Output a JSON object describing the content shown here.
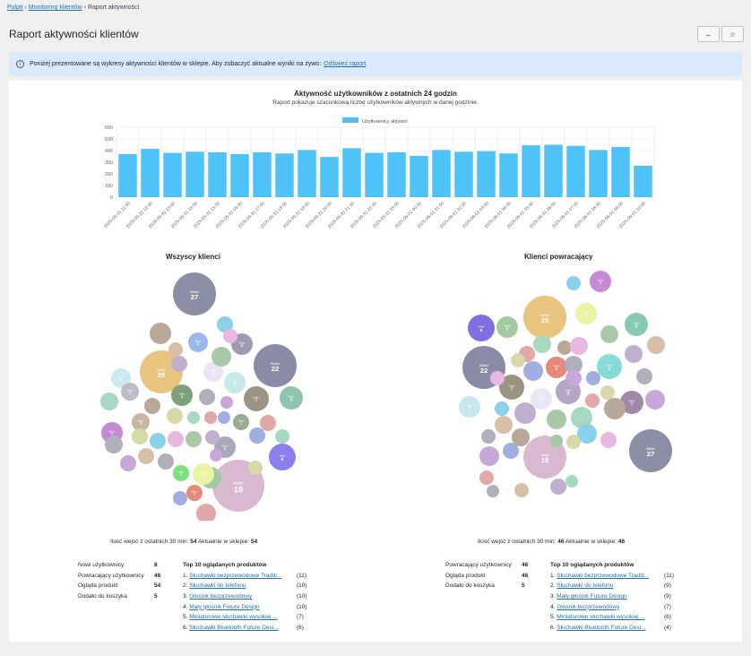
{
  "breadcrumb": {
    "items": [
      "Pulpit",
      "Monitoring klientów",
      "Raport aktywności"
    ],
    "separator": "›"
  },
  "page": {
    "title": "Raport aktywności klientów",
    "btn_collapse": "↔",
    "btn_star": "☆"
  },
  "notice": {
    "text": "Poniżej prezentowane są wykresy aktywności klientów w sklepie. Aby zobaczyć aktualne wyniki na żywo:",
    "link": "Odśwież raport",
    "icon": "i"
  },
  "chart_data": [
    {
      "type": "bar",
      "title": "Aktywność użytkowników z ostatnich 24 godzin",
      "subtitle": "Raport pokazuje szacunkową liczbę użytkowników aktywnych w danej godzinie.",
      "legend": "top",
      "grid": true,
      "ylim": [
        0,
        600
      ],
      "yticks": [
        0,
        100,
        200,
        300,
        400,
        500,
        600
      ],
      "categories": [
        "2025-05-31 11:00",
        "2025-05-31 12:00",
        "2025-05-31 13:00",
        "2025-05-31 14:00",
        "2025-05-31 15:00",
        "2025-05-31 16:00",
        "2025-05-31 17:00",
        "2025-05-31 18:00",
        "2025-05-31 19:00",
        "2025-05-31 20:00",
        "2025-05-31 21:00",
        "2025-05-31 22:00",
        "2025-05-31 23:00",
        "2025-06-01 00:00",
        "2025-06-01 01:00",
        "2025-06-01 02:00",
        "2025-06-01 03:00",
        "2025-06-01 04:00",
        "2025-06-01 05:00",
        "2025-06-01 06:00",
        "2025-06-01 07:00",
        "2025-06-01 08:00",
        "2025-06-01 09:00",
        "2025-06-01 10:00"
      ],
      "series": [
        {
          "name": "Użytkownicy aktywni",
          "color": "#4fc3f7",
          "values": [
            370,
            415,
            380,
            390,
            385,
            370,
            385,
            375,
            405,
            345,
            420,
            380,
            385,
            355,
            405,
            390,
            395,
            375,
            445,
            450,
            440,
            405,
            430,
            270
          ]
        }
      ]
    }
  ],
  "bubbles": {
    "all": {
      "title": "Wszyscy klienci",
      "footnote_prefix": "Ilość wejść z ostatnich 30 min:",
      "footnote_count": "54",
      "footnote_mid": "Aktualnie w sklepie:",
      "footnote_current": "54",
      "items": [
        {
          "label": "Wejść",
          "value": "27",
          "color": "#8a8fa6"
        },
        {
          "label": "Wejść",
          "value": "25",
          "color": "#e8c47e"
        },
        {
          "label": "Wejść",
          "value": "22",
          "color": "#8b8ba8"
        },
        {
          "label": "Wejść",
          "value": "18",
          "color": "#d8b9cf"
        },
        {
          "label": "Wejść",
          "value": "9",
          "color": "#8b7ff0"
        },
        {
          "label": "Wejść",
          "value": "8",
          "color": "#a8a9b8"
        },
        {
          "label": "Wejść",
          "value": "7",
          "color": "#c48ad4"
        },
        {
          "label": "Wejść",
          "value": "7",
          "color": "#9b9482"
        },
        {
          "label": "Wejść",
          "value": "6",
          "color": "#8fc4ad"
        },
        {
          "label": "Wejść",
          "value": "5",
          "color": "#a09ab2"
        },
        {
          "label": "Wejść",
          "value": "5",
          "color": "#c6b6a6"
        },
        {
          "label": "Wejść",
          "value": "5",
          "color": "#c8e8e8"
        },
        {
          "label": "Wejść",
          "value": "4",
          "color": "#a3c9a3"
        },
        {
          "label": "Wejść",
          "value": "4",
          "color": "#9bb8e8"
        },
        {
          "label": "Wejść",
          "value": "4",
          "color": "#cce8f3"
        },
        {
          "label": "Wejść",
          "value": "4",
          "color": "#ebe4f4"
        },
        {
          "label": "Wejść",
          "value": "3",
          "color": "#9aab90"
        },
        {
          "label": "Wejść",
          "value": "3",
          "color": "#7da17d"
        },
        {
          "label": "Wejść",
          "value": "3",
          "color": "#bcbcc7"
        },
        {
          "label": "Wejść",
          "value": "3",
          "color": "#edf3a5"
        },
        {
          "label": "Wejść",
          "value": "2",
          "color": "#e58a7a"
        },
        {
          "label": "Wejść",
          "value": "2",
          "color": "#7ce07c"
        }
      ]
    },
    "returning": {
      "title": "Klienci powracający",
      "footnote_prefix": "Ilość wejść z ostatnich 30 min:",
      "footnote_count": "46",
      "footnote_mid": "Aktualnie w sklepie:",
      "footnote_current": "46",
      "items": [
        {
          "label": "Wejść",
          "value": "25",
          "color": "#e8c47e"
        },
        {
          "label": "Wejść",
          "value": "22",
          "color": "#8b8ba8"
        },
        {
          "label": "Wejść",
          "value": "27",
          "color": "#8a8fa6"
        },
        {
          "label": "Wejść",
          "value": "18",
          "color": "#d8b9cf"
        },
        {
          "label": "Wejść",
          "value": "9",
          "color": "#7f6fe0"
        },
        {
          "label": "Wejść",
          "value": "8",
          "color": "#a3c9a3"
        },
        {
          "label": "Wejść",
          "value": "7",
          "color": "#9b9482"
        },
        {
          "label": "Wejść",
          "value": "7",
          "color": "#9e8aa8"
        },
        {
          "label": "Wejść",
          "value": "6",
          "color": "#88c9b2"
        },
        {
          "label": "Wejść",
          "value": "5",
          "color": "#b6a6c6"
        },
        {
          "label": "Wejść",
          "value": "5",
          "color": "#c8e6ee"
        },
        {
          "label": "Wejść",
          "value": "4",
          "color": "#86dbd4"
        },
        {
          "label": "Wejść",
          "value": "4",
          "color": "#ebe8f5"
        },
        {
          "label": "Wejść",
          "value": "3",
          "color": "#edf3a5"
        },
        {
          "label": "Wejść",
          "value": "3",
          "color": "#e58a7a"
        },
        {
          "label": "Wejść",
          "value": "2",
          "color": "#c48ad4"
        }
      ]
    }
  },
  "stats_all": [
    {
      "label": "Nowi użytkownicy",
      "value": "8"
    },
    {
      "label": "Powracający użytkownicy",
      "value": "46"
    },
    {
      "label": "Ogląda produkt",
      "value": "54"
    },
    {
      "label": "Dodało do koszyka",
      "value": "5"
    }
  ],
  "stats_returning": [
    {
      "label": "Powracający użytkownicy",
      "value": "46"
    },
    {
      "label": "Ogląda produkt",
      "value": "46"
    },
    {
      "label": "Dodało do koszyka",
      "value": "5"
    }
  ],
  "top10_all": {
    "title": "Top 10 oglądanych produktów",
    "items": [
      {
        "num": "1.",
        "name": "Słuchawki bezprzewodowe Traditi...",
        "count": "(11)"
      },
      {
        "num": "2.",
        "name": "Słuchawki do telefonu",
        "count": "(10)"
      },
      {
        "num": "3.",
        "name": "Głośnik bezprzewodowy",
        "count": "(10)"
      },
      {
        "num": "4.",
        "name": "Mały głośnik Future Design",
        "count": "(10)"
      },
      {
        "num": "5.",
        "name": "Miniaturowe słuchawki wysokiej ...",
        "count": "(7)"
      },
      {
        "num": "6.",
        "name": "Słuchawki Bluetooth Future Desi...",
        "count": "(6)"
      }
    ]
  },
  "top10_returning": {
    "title": "Top 10 oglądanych produktów",
    "items": [
      {
        "num": "1.",
        "name": "Słuchawki bezprzewodowe Traditi...",
        "count": "(11)"
      },
      {
        "num": "2.",
        "name": "Słuchawki do telefonu",
        "count": "(9)"
      },
      {
        "num": "3.",
        "name": "Mały głośnik Future Design",
        "count": "(9)"
      },
      {
        "num": "4.",
        "name": "Głośnik bezprzewodowy",
        "count": "(7)"
      },
      {
        "num": "5.",
        "name": "Miniaturowe słuchawki wysokiej ...",
        "count": "(6)"
      },
      {
        "num": "6.",
        "name": "Słuchawki Bluetooth Future Desi...",
        "count": "(4)"
      }
    ]
  }
}
